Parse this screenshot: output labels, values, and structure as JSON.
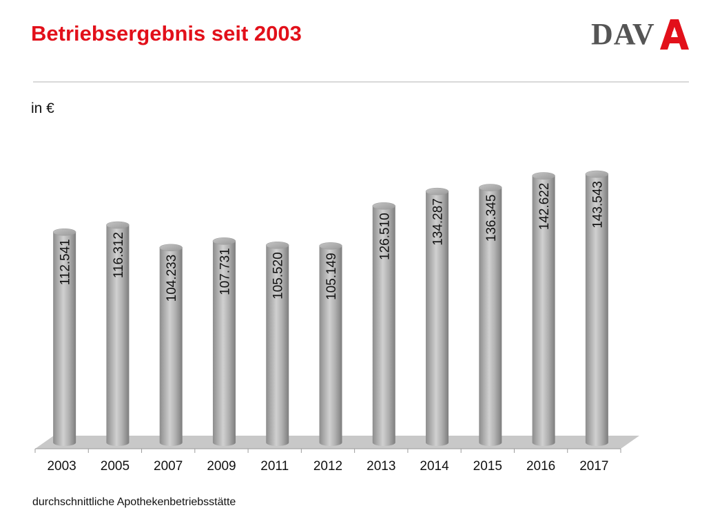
{
  "header": {
    "title": "Betriebsergebnis seit 2003",
    "logo_text": "DAV",
    "brand_color": "#e2101a"
  },
  "unit_label": "in €",
  "footnote": "durchschnittliche Apothekenbetriebsstätte",
  "chart_data": {
    "type": "bar",
    "style": "3d-cylinder",
    "categories": [
      "2003",
      "2005",
      "2007",
      "2009",
      "2011",
      "2012",
      "2013",
      "2014",
      "2015",
      "2016",
      "2017"
    ],
    "values": [
      112541,
      116312,
      104233,
      107731,
      105520,
      105149,
      126510,
      134287,
      136345,
      142622,
      143543
    ],
    "value_labels": [
      "112.541",
      "116.312",
      "104.233",
      "107.731",
      "105.520",
      "105.149",
      "126.510",
      "134.287",
      "136.345",
      "142.622",
      "143.543"
    ],
    "ylim": [
      0,
      143543
    ],
    "grid": false,
    "legend": "none",
    "bar_color": "#a6a6a6"
  }
}
